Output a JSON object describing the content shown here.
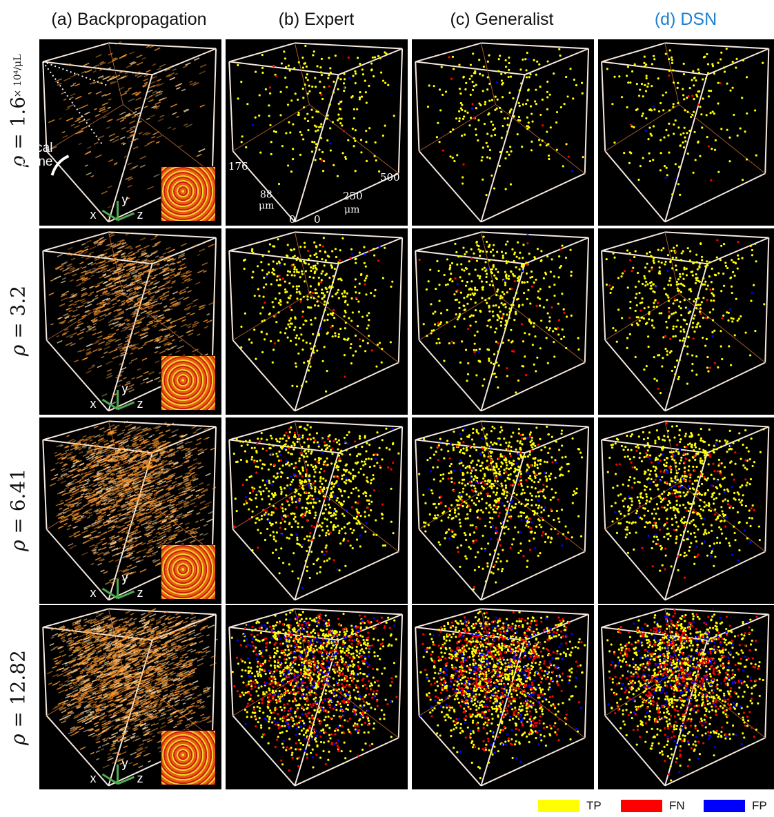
{
  "headers": {
    "col_a": "(a) Backpropagation",
    "col_b": "(b) Expert",
    "col_c": "(c) Generalist",
    "col_d": "(d) DSN"
  },
  "rows": [
    {
      "rho": "ρ",
      "eq": " = 1.6"
    },
    {
      "rho": "ρ",
      "eq": " = 3.2"
    },
    {
      "rho": "ρ",
      "eq": " = 6.41"
    },
    {
      "rho": "ρ",
      "eq": " = 12.82"
    }
  ],
  "unit": "× 10⁴/μL",
  "annotations": {
    "focal_line1": "Focal",
    "focal_line2": "plane",
    "axis_x": "x",
    "axis_y": "y",
    "axis_z": "z",
    "tick_176": "176",
    "tick_88": "88",
    "tick_88_unit": "μm",
    "tick_0a": "0",
    "tick_0b": "0",
    "tick_250": "250",
    "tick_250_unit": "μm",
    "tick_500": "500"
  },
  "legend": [
    {
      "label": "TP",
      "color": "#ffff00"
    },
    {
      "label": "FN",
      "color": "#ff0000"
    },
    {
      "label": "FP",
      "color": "#0000ff"
    }
  ],
  "colors": {
    "accent": "#1f7fd0",
    "tp": "#ffff00",
    "fn": "#ff0000",
    "fp": "#0000ff",
    "glow": "#ff9a2e",
    "panel_bg": "#000000"
  },
  "particle_counts": [
    {
      "tp": 210,
      "fn": 8,
      "fp": 4
    },
    {
      "tp": 380,
      "fn": 25,
      "fp": 6
    },
    {
      "tp": 650,
      "fn": 80,
      "fp": 45
    },
    {
      "tp": 1000,
      "fn": 450,
      "fp": 180
    }
  ]
}
